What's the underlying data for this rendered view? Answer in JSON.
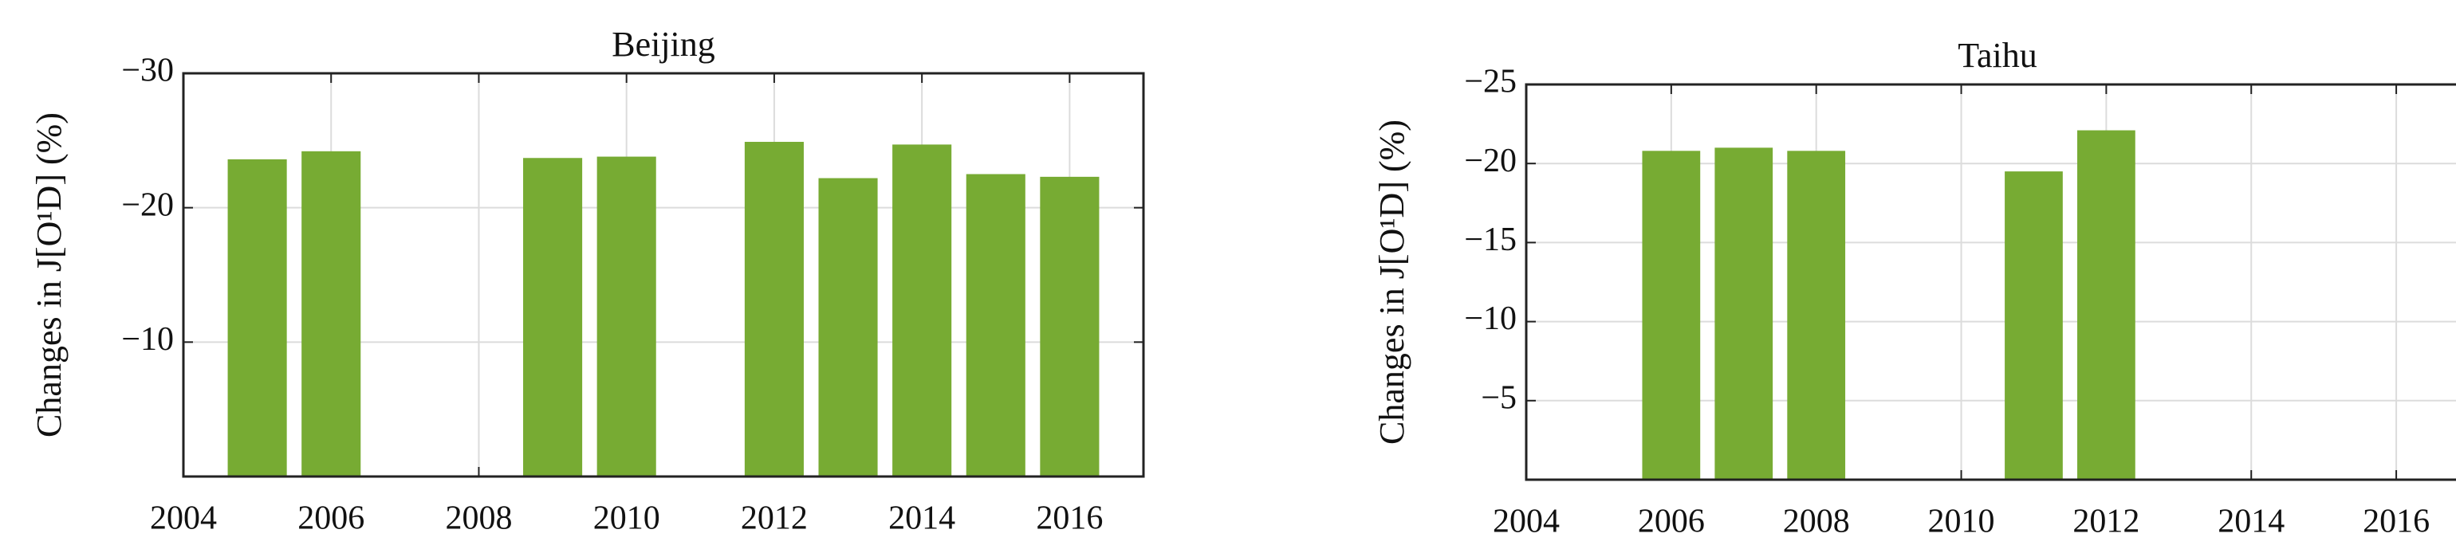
{
  "chart_data": [
    {
      "type": "bar",
      "title": "Beijing",
      "ylabel": "Changes in J[O¹D] (%)",
      "x": [
        2005,
        2006,
        2009,
        2010,
        2012,
        2013,
        2014,
        2015,
        2016
      ],
      "values": [
        -23.6,
        -24.2,
        -23.7,
        -23.8,
        -24.9,
        -22.2,
        -24.7,
        -22.5,
        -22.3
      ],
      "color": "#77ab33",
      "xlim": [
        2004,
        2017
      ],
      "xticks": [
        2004,
        2006,
        2008,
        2010,
        2012,
        2014,
        2016
      ],
      "ylim": [
        -30,
        0
      ],
      "y_reversed": true,
      "yticks": [
        {
          "value": -30,
          "label": "−30"
        },
        {
          "value": -20,
          "label": "−20"
        },
        {
          "value": -10,
          "label": "−10"
        }
      ],
      "grid": true
    },
    {
      "type": "bar",
      "title": "Taihu",
      "ylabel": "Changes in J[O¹D] (%)",
      "x": [
        2006,
        2007,
        2008,
        2011,
        2012
      ],
      "values": [
        -20.8,
        -21.0,
        -20.8,
        -19.5,
        -22.1
      ],
      "color": "#77ab33",
      "xlim": [
        2004,
        2017
      ],
      "xticks": [
        2004,
        2006,
        2008,
        2010,
        2012,
        2014,
        2016
      ],
      "ylim": [
        -25,
        0
      ],
      "y_reversed": true,
      "yticks": [
        {
          "value": -25,
          "label": "−25"
        },
        {
          "value": -20,
          "label": "−20"
        },
        {
          "value": -15,
          "label": "−15"
        },
        {
          "value": -10,
          "label": "−10"
        },
        {
          "value": -5,
          "label": "−5"
        }
      ],
      "grid": true
    }
  ]
}
